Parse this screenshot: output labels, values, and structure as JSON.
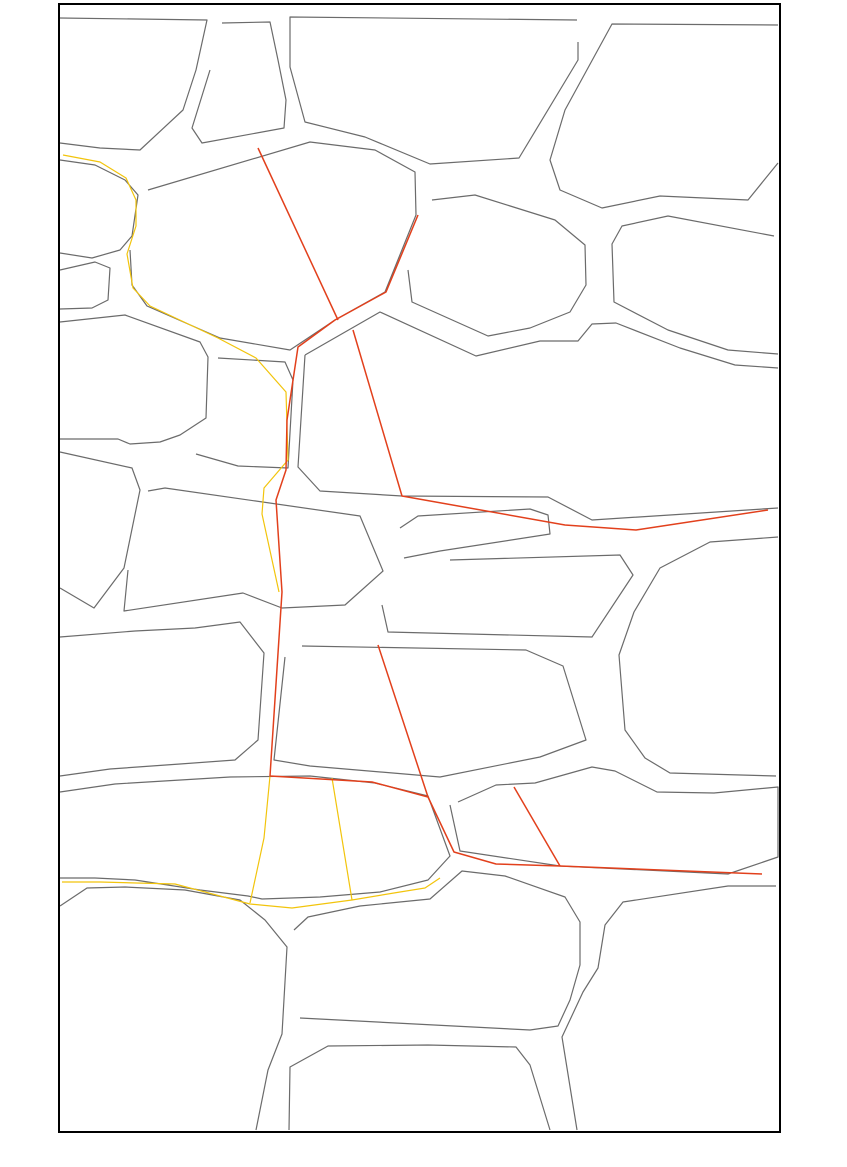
{
  "map": {
    "background": "#ffffff",
    "block_outline_color": "#6b6b6b",
    "frame_color": "#000000",
    "routes": [
      {
        "id": "red",
        "color": "#e2401c"
      },
      {
        "id": "yellow",
        "color": "#f2c40c"
      }
    ]
  }
}
